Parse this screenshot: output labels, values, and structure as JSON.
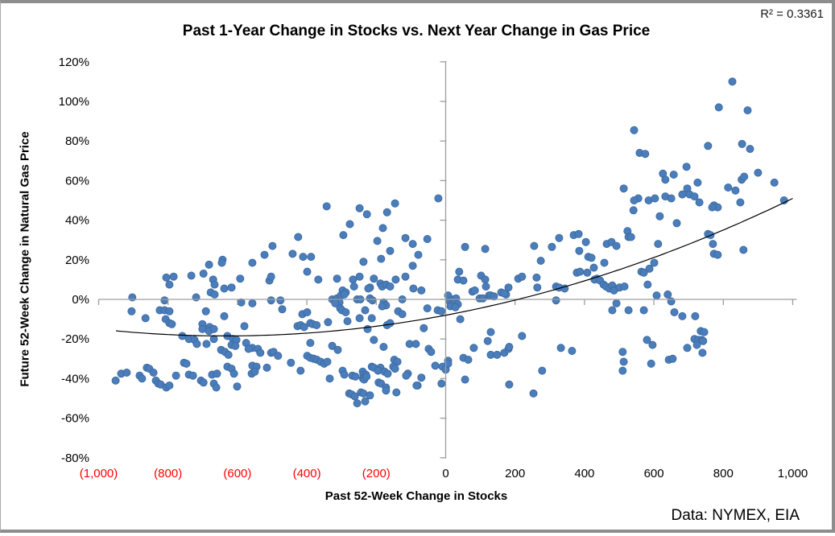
{
  "chart_data": {
    "type": "scatter",
    "title": "Past 1-Year Change in Stocks vs. Next Year Change in Gas Price",
    "xlabel": "Past 52-Week Change in Stocks",
    "ylabel": "Future 52-Week Change in Natural Gas Price",
    "annotation": "R² = 0.3361",
    "source_note": "Data: NYMEX, EIA",
    "xlim": [
      -1000,
      1000
    ],
    "ylim": [
      -80,
      120
    ],
    "grid": false,
    "legend": "none",
    "marker_color": "#4A7DBA",
    "marker_stroke": "#3A689F",
    "axis_color": "#9E9E9E",
    "negative_tick_color": "#FF0000",
    "x_ticks": [
      {
        "value": -1000,
        "label": "(1,000)"
      },
      {
        "value": -800,
        "label": "(800)"
      },
      {
        "value": -600,
        "label": "(600)"
      },
      {
        "value": -400,
        "label": "(400)"
      },
      {
        "value": -200,
        "label": "(200)"
      },
      {
        "value": 0,
        "label": "0"
      },
      {
        "value": 200,
        "label": "200"
      },
      {
        "value": 400,
        "label": "400"
      },
      {
        "value": 600,
        "label": "600"
      },
      {
        "value": 800,
        "label": "800"
      },
      {
        "value": 1000,
        "label": "1,000"
      }
    ],
    "y_ticks": [
      {
        "value": 120,
        "label": "120%"
      },
      {
        "value": 100,
        "label": "100%"
      },
      {
        "value": 80,
        "label": "80%"
      },
      {
        "value": 60,
        "label": "60%"
      },
      {
        "value": 40,
        "label": "40%"
      },
      {
        "value": 20,
        "label": "20%"
      },
      {
        "value": 0,
        "label": "0%"
      },
      {
        "value": -20,
        "label": "-20%"
      },
      {
        "value": -40,
        "label": "-40%"
      },
      {
        "value": -60,
        "label": "-60%"
      },
      {
        "value": -80,
        "label": "-80%"
      }
    ],
    "trendline": {
      "type": "polynomial",
      "order": 2,
      "coefficients": {
        "a": 2.6e-05,
        "b": 0.033,
        "c": -8
      },
      "domain": [
        -950,
        1005
      ],
      "color": "#000000",
      "r_squared": 0.3361
    },
    "points": [
      [
        -643,
        20
      ],
      [
        -522,
        22.5
      ],
      [
        -343,
        47
      ],
      [
        -248,
        46
      ],
      [
        -227,
        43
      ],
      [
        -169,
        44
      ],
      [
        -146,
        48.5
      ],
      [
        -21,
        51
      ],
      [
        -276,
        38
      ],
      [
        -295,
        32.5
      ],
      [
        -425,
        31.5
      ],
      [
        -499,
        27
      ],
      [
        -181,
        36
      ],
      [
        -197,
        29.5
      ],
      [
        -116,
        31
      ],
      [
        -95,
        28
      ],
      [
        -53,
        30.5
      ],
      [
        -441,
        23
      ],
      [
        -411,
        21.5
      ],
      [
        -388,
        21.5
      ],
      [
        -160,
        24.5
      ],
      [
        -79,
        22.5
      ],
      [
        -186,
        20.5
      ],
      [
        -237,
        19
      ],
      [
        513,
        56
      ],
      [
        56,
        26.5
      ],
      [
        114,
        25.5
      ],
      [
        255,
        27
      ],
      [
        306,
        26.5
      ],
      [
        327,
        31
      ],
      [
        369,
        32.5
      ],
      [
        383,
        33
      ],
      [
        404,
        29
      ],
      [
        385,
        24.5
      ],
      [
        411,
        21.5
      ],
      [
        420,
        21
      ],
      [
        464,
        28
      ],
      [
        478,
        29
      ],
      [
        492,
        27
      ],
      [
        524,
        34.5
      ],
      [
        527,
        31.5
      ],
      [
        274,
        19.5
      ],
      [
        826,
        110
      ],
      [
        787,
        97
      ],
      [
        870,
        95.5
      ],
      [
        543,
        85.5
      ],
      [
        756,
        77.5
      ],
      [
        854,
        78.5
      ],
      [
        877,
        76
      ],
      [
        559,
        74
      ],
      [
        575,
        73.5
      ],
      [
        694,
        67
      ],
      [
        626,
        63.5
      ],
      [
        657,
        63
      ],
      [
        633,
        60.5
      ],
      [
        900,
        64
      ],
      [
        853,
        60.5
      ],
      [
        860,
        62
      ],
      [
        947,
        59
      ],
      [
        726,
        59
      ],
      [
        696,
        56
      ],
      [
        814,
        56.5
      ],
      [
        835,
        55
      ],
      [
        555,
        51
      ],
      [
        543,
        50
      ],
      [
        585,
        50
      ],
      [
        603,
        51
      ],
      [
        633,
        52
      ],
      [
        650,
        51
      ],
      [
        682,
        53
      ],
      [
        703,
        53
      ],
      [
        717,
        52
      ],
      [
        731,
        49
      ],
      [
        773,
        47.5
      ],
      [
        784,
        46.5
      ],
      [
        768,
        46.5
      ],
      [
        849,
        49
      ],
      [
        975,
        50
      ],
      [
        541,
        45
      ],
      [
        617,
        42
      ],
      [
        666,
        38.5
      ],
      [
        612,
        28
      ],
      [
        756,
        33
      ],
      [
        763,
        32.5
      ],
      [
        770,
        28
      ],
      [
        773,
        23
      ],
      [
        784,
        22.5
      ],
      [
        858,
        25
      ],
      [
        534,
        31.5
      ],
      [
        -805,
        11
      ],
      [
        -784,
        11.5
      ],
      [
        -796,
        7.5
      ],
      [
        -733,
        12
      ],
      [
        -698,
        13
      ],
      [
        -682,
        17.5
      ],
      [
        -645,
        18.5
      ],
      [
        -557,
        18.5
      ],
      [
        -670,
        10
      ],
      [
        -666,
        7.5
      ],
      [
        -638,
        5.5
      ],
      [
        -617,
        6
      ],
      [
        -677,
        3.5
      ],
      [
        -666,
        2.5
      ],
      [
        -719,
        1
      ],
      [
        -903,
        1
      ],
      [
        -810,
        -0.5
      ],
      [
        -592,
        10.5
      ],
      [
        -508,
        9.5
      ],
      [
        -589,
        -1.5
      ],
      [
        -557,
        -2
      ],
      [
        -905,
        -6
      ],
      [
        -865,
        -9.5
      ],
      [
        -824,
        -5.5
      ],
      [
        -810,
        -5.5
      ],
      [
        -796,
        -6
      ],
      [
        -807,
        -10
      ],
      [
        -796,
        -12
      ],
      [
        -789,
        -12.5
      ],
      [
        -691,
        -6
      ],
      [
        -638,
        -8.5
      ],
      [
        -701,
        -12.5
      ],
      [
        -680,
        -14
      ],
      [
        -580,
        -13.5
      ],
      [
        -759,
        -18.5
      ],
      [
        -740,
        -20
      ],
      [
        -724,
        -20.5
      ],
      [
        -717,
        -22.5
      ],
      [
        -701,
        -15
      ],
      [
        -682,
        -16
      ],
      [
        -668,
        -15
      ],
      [
        -689,
        -22.5
      ],
      [
        -668,
        -20
      ],
      [
        -629,
        -18.5
      ],
      [
        -613,
        -20
      ],
      [
        -603,
        -20.5
      ],
      [
        -617,
        -23
      ],
      [
        -606,
        -23.5
      ],
      [
        -575,
        -22
      ],
      [
        -557,
        -24.5
      ],
      [
        -541,
        -25
      ],
      [
        -534,
        -27
      ],
      [
        -568,
        -25
      ],
      [
        -647,
        -25.5
      ],
      [
        -636,
        -26.5
      ],
      [
        -626,
        -28
      ],
      [
        -557,
        -33.5
      ],
      [
        -545,
        -34
      ],
      [
        -754,
        -32
      ],
      [
        -747,
        -32.5
      ],
      [
        -740,
        -38
      ],
      [
        -728,
        -38.5
      ],
      [
        -861,
        -34.5
      ],
      [
        -854,
        -35
      ],
      [
        -842,
        -37
      ],
      [
        -935,
        -37.5
      ],
      [
        -919,
        -37
      ],
      [
        -951,
        -41
      ],
      [
        -882,
        -38.5
      ],
      [
        -875,
        -40
      ],
      [
        -835,
        -41
      ],
      [
        -828,
        -42.5
      ],
      [
        -821,
        -43
      ],
      [
        -805,
        -44.5
      ],
      [
        -796,
        -43.5
      ],
      [
        -777,
        -38.5
      ],
      [
        -705,
        -41
      ],
      [
        -698,
        -42
      ],
      [
        -673,
        -38
      ],
      [
        -659,
        -37.5
      ],
      [
        -668,
        -42.5
      ],
      [
        -661,
        -44.5
      ],
      [
        -629,
        -34
      ],
      [
        -617,
        -35
      ],
      [
        -610,
        -37.5
      ],
      [
        -601,
        -44
      ],
      [
        -559,
        -37.5
      ],
      [
        -550,
        -36.5
      ],
      [
        -515,
        -34.5
      ],
      [
        -95,
        17
      ],
      [
        -399,
        14
      ],
      [
        -313,
        10.5
      ],
      [
        -367,
        10
      ],
      [
        -503,
        11.5
      ],
      [
        -267,
        10
      ],
      [
        -264,
        6.5
      ],
      [
        -248,
        11.5
      ],
      [
        -207,
        10.5
      ],
      [
        -218,
        6
      ],
      [
        -188,
        8
      ],
      [
        -183,
        6.5
      ],
      [
        -172,
        7.5
      ],
      [
        -160,
        6.5
      ],
      [
        -144,
        10
      ],
      [
        -116,
        11.5
      ],
      [
        -297,
        4.5
      ],
      [
        -288,
        3.5
      ],
      [
        -223,
        5.5
      ],
      [
        -93,
        5.5
      ],
      [
        -70,
        4.5
      ],
      [
        -503,
        -0.5
      ],
      [
        -476,
        -0.5
      ],
      [
        -327,
        0
      ],
      [
        -313,
        0.5
      ],
      [
        -306,
        -1.5
      ],
      [
        -318,
        -2
      ],
      [
        -302,
        2
      ],
      [
        -292,
        2.5
      ],
      [
        -255,
        0
      ],
      [
        -246,
        0
      ],
      [
        -218,
        0.5
      ],
      [
        -211,
        -0.5
      ],
      [
        -179,
        -1.5
      ],
      [
        -172,
        -3
      ],
      [
        -183,
        -3.5
      ],
      [
        -125,
        0
      ],
      [
        -471,
        -5
      ],
      [
        -413,
        -7.5
      ],
      [
        -399,
        -6.5
      ],
      [
        -304,
        -4.5
      ],
      [
        -299,
        -5.5
      ],
      [
        -288,
        -6.5
      ],
      [
        -232,
        -5.5
      ],
      [
        -213,
        -9.5
      ],
      [
        -248,
        -9.5
      ],
      [
        -283,
        -11
      ],
      [
        -137,
        -6
      ],
      [
        -125,
        -7.5
      ],
      [
        -53,
        -4.5
      ],
      [
        -23,
        -5.5
      ],
      [
        -12,
        -6
      ],
      [
        -427,
        -13.5
      ],
      [
        -418,
        -13
      ],
      [
        -408,
        -14
      ],
      [
        -390,
        -12
      ],
      [
        -383,
        -12.5
      ],
      [
        -372,
        -13
      ],
      [
        -339,
        -11.5
      ],
      [
        -225,
        -15
      ],
      [
        -169,
        -13
      ],
      [
        -160,
        -12
      ],
      [
        -63,
        -14.5
      ],
      [
        -390,
        -22
      ],
      [
        -327,
        -23.5
      ],
      [
        -311,
        -25.5
      ],
      [
        -207,
        -20.5
      ],
      [
        -179,
        -24
      ],
      [
        -104,
        -22.5
      ],
      [
        -86,
        -22.5
      ],
      [
        -49,
        -25
      ],
      [
        -42,
        -26.5
      ],
      [
        -503,
        -27
      ],
      [
        -496,
        -26.5
      ],
      [
        -483,
        -28.5
      ],
      [
        -446,
        -32
      ],
      [
        -399,
        -28.5
      ],
      [
        -390,
        -29.5
      ],
      [
        -380,
        -30
      ],
      [
        -371,
        -30.5
      ],
      [
        -360,
        -31.5
      ],
      [
        -350,
        -32.5
      ],
      [
        -341,
        -31.5
      ],
      [
        -418,
        -36
      ],
      [
        -334,
        -40
      ],
      [
        -297,
        -36
      ],
      [
        -292,
        -38
      ],
      [
        -269,
        -38.5
      ],
      [
        -260,
        -39
      ],
      [
        -239,
        -36.5
      ],
      [
        -237,
        -38
      ],
      [
        -230,
        -38
      ],
      [
        -238,
        -40
      ],
      [
        -235,
        -40.5
      ],
      [
        -228,
        -39
      ],
      [
        -213,
        -34
      ],
      [
        -207,
        -34.5
      ],
      [
        -188,
        -34.5
      ],
      [
        -195,
        -36
      ],
      [
        -176,
        -36.5
      ],
      [
        -167,
        -37.5
      ],
      [
        -148,
        -30.5
      ],
      [
        -139,
        -31.5
      ],
      [
        -151,
        -34
      ],
      [
        -146,
        -35
      ],
      [
        -109,
        -37.5
      ],
      [
        -114,
        -38.5
      ],
      [
        -81,
        -43.5
      ],
      [
        -30,
        -33.5
      ],
      [
        -9,
        -34
      ],
      [
        0,
        -35.5
      ],
      [
        -278,
        -47.5
      ],
      [
        -271,
        -48
      ],
      [
        -262,
        -49
      ],
      [
        -255,
        -52.5
      ],
      [
        -244,
        -47
      ],
      [
        -237,
        -47.5
      ],
      [
        -218,
        -48.5
      ],
      [
        -232,
        -51.5
      ],
      [
        -193,
        -42
      ],
      [
        -186,
        -42.5
      ],
      [
        -172,
        -44.5
      ],
      [
        -172,
        -46
      ],
      [
        -142,
        -47
      ],
      [
        -84,
        -43.5
      ],
      [
        -70,
        -39.5
      ],
      [
        -12,
        -42.5
      ],
      [
        457,
        18.5
      ],
      [
        39,
        14
      ],
      [
        35,
        10
      ],
      [
        51,
        9.5
      ],
      [
        102,
        12
      ],
      [
        114,
        10
      ],
      [
        209,
        10.5
      ],
      [
        220,
        11.5
      ],
      [
        262,
        11
      ],
      [
        116,
        6.5
      ],
      [
        125,
        2
      ],
      [
        181,
        6
      ],
      [
        174,
        2.5
      ],
      [
        264,
        6
      ],
      [
        378,
        13.5
      ],
      [
        387,
        14
      ],
      [
        408,
        13.5
      ],
      [
        427,
        16
      ],
      [
        436,
        10.5
      ],
      [
        429,
        10
      ],
      [
        445,
        9.5
      ],
      [
        455,
        7.5
      ],
      [
        462,
        6.5
      ],
      [
        471,
        5.5
      ],
      [
        480,
        7
      ],
      [
        318,
        6.5
      ],
      [
        327,
        6
      ],
      [
        343,
        5.5
      ],
      [
        485,
        4.5
      ],
      [
        501,
        6
      ],
      [
        515,
        6.5
      ],
      [
        7,
        2
      ],
      [
        12,
        -1
      ],
      [
        21,
        0
      ],
      [
        30,
        0.5
      ],
      [
        23,
        -2
      ],
      [
        35,
        -2.5
      ],
      [
        14,
        -3.5
      ],
      [
        28,
        -4
      ],
      [
        77,
        4
      ],
      [
        84,
        4.5
      ],
      [
        98,
        0.5
      ],
      [
        107,
        0.5
      ],
      [
        130,
        2
      ],
      [
        139,
        1.5
      ],
      [
        160,
        3.5
      ],
      [
        169,
        3
      ],
      [
        318,
        -0.5
      ],
      [
        42,
        -10
      ],
      [
        130,
        -16.5
      ],
      [
        121,
        -21
      ],
      [
        130,
        -28
      ],
      [
        148,
        -28
      ],
      [
        81,
        -24.5
      ],
      [
        51,
        -29.5
      ],
      [
        65,
        -30.5
      ],
      [
        7,
        -31
      ],
      [
        7,
        -32.5
      ],
      [
        169,
        -27
      ],
      [
        181,
        -25
      ],
      [
        183,
        -24
      ],
      [
        220,
        -18.5
      ],
      [
        332,
        -24.5
      ],
      [
        364,
        -26
      ],
      [
        278,
        -36
      ],
      [
        56,
        -40.5
      ],
      [
        183,
        -43
      ],
      [
        253,
        -47.5
      ],
      [
        510,
        -26.5
      ],
      [
        513,
        -31.5
      ],
      [
        510,
        -36
      ],
      [
        480,
        -5.5
      ],
      [
        492,
        -2
      ],
      [
        601,
        18.5
      ],
      [
        587,
        15.5
      ],
      [
        564,
        14
      ],
      [
        571,
        13.5
      ],
      [
        582,
        7.5
      ],
      [
        608,
        2
      ],
      [
        640,
        2.5
      ],
      [
        650,
        -1
      ],
      [
        527,
        -5.5
      ],
      [
        571,
        -5.5
      ],
      [
        659,
        -6.5
      ],
      [
        682,
        -8.5
      ],
      [
        719,
        -8.5
      ],
      [
        735,
        -16
      ],
      [
        745,
        -16.5
      ],
      [
        717,
        -20
      ],
      [
        728,
        -20.5
      ],
      [
        738,
        -20.5
      ],
      [
        742,
        -21
      ],
      [
        724,
        -23
      ],
      [
        580,
        -20.5
      ],
      [
        596,
        -23
      ],
      [
        696,
        -24.5
      ],
      [
        740,
        -27
      ],
      [
        643,
        -30.5
      ],
      [
        654,
        -30
      ],
      [
        592,
        -32.5
      ]
    ]
  }
}
